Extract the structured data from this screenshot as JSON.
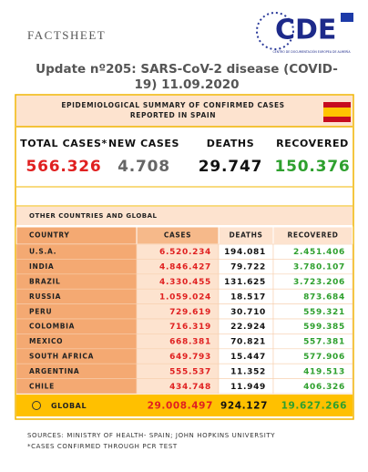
{
  "header": {
    "label": "FACTSHEET",
    "logo": {
      "text": "CDE",
      "caption": "CENTRO DE DOCUMENTACIÓN EUROPEA DE ALMERÍA"
    },
    "title": [
      "Update nº205: SARS-CoV-2 disease (COVID-",
      "19) 11.09.2020"
    ]
  },
  "spain": {
    "heading": [
      "EPIDEMIOLOGICAL SUMMARY OF CONFIRMED CASES",
      "REPORTED IN SPAIN"
    ],
    "stats": [
      {
        "label": "TOTAL CASES*",
        "value": "566.326"
      },
      {
        "label": "NEW CASES",
        "value": "4.708"
      },
      {
        "label": "DEATHS",
        "value": "29.747"
      },
      {
        "label": "RECOVERED",
        "value": "150.376"
      }
    ]
  },
  "global": {
    "heading": "OTHER COUNTRIES AND GLOBAL",
    "table": {
      "columns": [
        "COUNTRY",
        "CASES",
        "DEATHS",
        "RECOVERED"
      ],
      "rows": [
        [
          "U.S.A.",
          "6.520.234",
          "194.081",
          "2.451.406"
        ],
        [
          "INDIA",
          "4.846.427",
          "79.722",
          "3.780.107"
        ],
        [
          "BRAZIL",
          "4.330.455",
          "131.625",
          "3.723.206"
        ],
        [
          "RUSSIA",
          "1.059.024",
          "18.517",
          "873.684"
        ],
        [
          "PERU",
          "729.619",
          "30.710",
          "559.321"
        ],
        [
          "COLOMBIA",
          "716.319",
          "22.924",
          "599.385"
        ],
        [
          "MEXICO",
          "668.381",
          "70.821",
          "557.381"
        ],
        [
          "SOUTH AFRICA",
          "649.793",
          "15.447",
          "577.906"
        ],
        [
          "ARGENTINA",
          "555.537",
          "11.352",
          "419.513"
        ],
        [
          "CHILE",
          "434.748",
          "11.949",
          "406.326"
        ]
      ],
      "total": [
        "GLOBAL",
        "29.008.497",
        "924.127",
        "19.627.266"
      ]
    }
  },
  "footer": {
    "notes": [
      "SOURCES: MINISTRY OF HEALTH- SPAIN; JOHN HOPKINS UNIVERSITY",
      "*CASES CONFIRMED THROUGH PCR TEST"
    ]
  }
}
